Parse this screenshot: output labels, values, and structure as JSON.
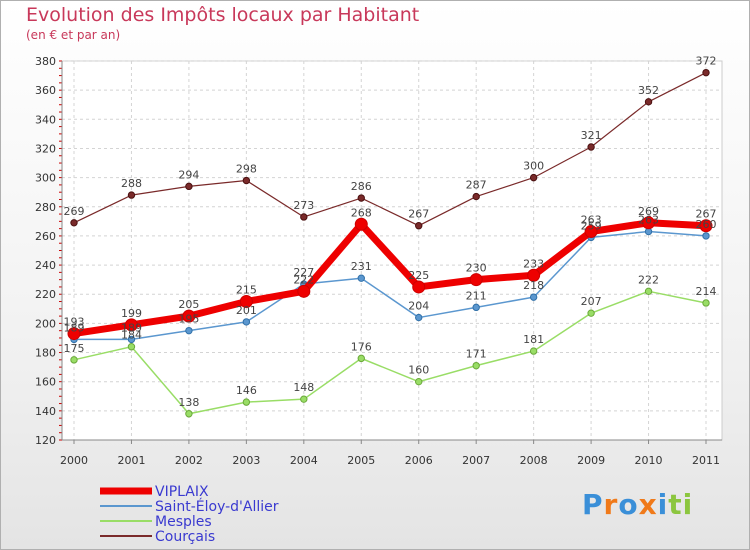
{
  "chart_data": {
    "type": "line",
    "title": "Evolution des Impôts locaux par Habitant",
    "subtitle": "(en € et par an)",
    "categories": [
      "2000",
      "2001",
      "2002",
      "2003",
      "2004",
      "2005",
      "2006",
      "2007",
      "2008",
      "2009",
      "2010",
      "2011"
    ],
    "ylim": [
      120,
      380
    ],
    "yticks": [
      120,
      140,
      160,
      180,
      200,
      220,
      240,
      260,
      280,
      300,
      320,
      340,
      360,
      380
    ],
    "grid": true,
    "legend_position": "bottom-left",
    "series": [
      {
        "name": "VIPLAIX",
        "color": "#ee0000",
        "values": [
          193,
          199,
          205,
          215,
          222,
          268,
          225,
          230,
          233,
          263,
          269,
          267
        ]
      },
      {
        "name": "Saint-Éloy-d'Allier",
        "color": "#5b97cf",
        "values": [
          189,
          189,
          195,
          201,
          227,
          231,
          204,
          211,
          218,
          259,
          263,
          260
        ]
      },
      {
        "name": "Mesples",
        "color": "#99dd66",
        "values": [
          175,
          184,
          138,
          146,
          148,
          176,
          160,
          171,
          181,
          207,
          222,
          214
        ]
      },
      {
        "name": "Courçais",
        "color": "#7a2a2a",
        "values": [
          269,
          288,
          294,
          298,
          273,
          286,
          267,
          287,
          300,
          321,
          352,
          372
        ]
      }
    ]
  },
  "logo": {
    "letters": [
      "P",
      "r",
      "o",
      "x",
      "i",
      "t",
      "i"
    ],
    "colors": [
      "#3a8fd8",
      "#f07a1a",
      "#3a8fd8",
      "#f07a1a",
      "#3a8fd8",
      "#8cc63f",
      "#8cc63f"
    ]
  }
}
